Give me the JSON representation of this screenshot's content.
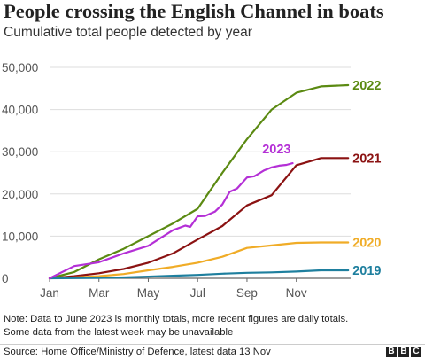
{
  "title": "People crossing the English Channel in boats",
  "subtitle": "Cumulative total people detected by year",
  "note_line1": "Note: Data to June 2023 is monthly totals, more recent figures are daily totals.",
  "note_line2": "Some data from the latest week may be unavailable",
  "source": "Source: Home Office/Ministry of Defence, latest data 13 Nov",
  "logo_letters": [
    "B",
    "B",
    "C"
  ],
  "chart_data": {
    "type": "line",
    "title": "People crossing the English Channel in boats",
    "subtitle": "Cumulative total people detected by year",
    "x_ticks": [
      "Jan",
      "Mar",
      "May",
      "Jul",
      "Sep",
      "Nov"
    ],
    "x_tick_months": [
      1,
      3,
      5,
      7,
      9,
      11
    ],
    "y_ticks": [
      "0",
      "10,000",
      "20,000",
      "30,000",
      "40,000",
      "50,000"
    ],
    "y_tick_values": [
      0,
      10000,
      20000,
      30000,
      40000,
      50000
    ],
    "xlim": [
      1,
      13.2
    ],
    "ylim": [
      0,
      50000
    ],
    "grid": true,
    "legend": "labels at line ends",
    "series": [
      {
        "name": "2022",
        "color": "#5b8a12",
        "x": [
          1,
          2,
          3,
          4,
          5,
          6,
          7,
          8,
          9,
          10,
          11,
          12,
          13.1
        ],
        "y": [
          0,
          1500,
          4500,
          7000,
          10000,
          13000,
          16500,
          25000,
          33000,
          40000,
          44000,
          45500,
          45800
        ]
      },
      {
        "name": "2021",
        "color": "#8b1212",
        "x": [
          1,
          2,
          3,
          4,
          5,
          6,
          7,
          8,
          9,
          10,
          11,
          12,
          13.1
        ],
        "y": [
          0,
          500,
          1200,
          2200,
          3700,
          5900,
          9200,
          12400,
          17300,
          19700,
          26800,
          28500,
          28500
        ]
      },
      {
        "name": "2020",
        "color": "#f0ac27",
        "x": [
          1,
          2,
          3,
          4,
          5,
          6,
          7,
          8,
          9,
          10,
          11,
          12,
          13.1
        ],
        "y": [
          0,
          200,
          500,
          1000,
          1900,
          2700,
          3700,
          5100,
          7200,
          7800,
          8400,
          8500,
          8500
        ]
      },
      {
        "name": "2019",
        "color": "#1e7f9e",
        "x": [
          1,
          2,
          3,
          4,
          5,
          6,
          7,
          8,
          9,
          10,
          11,
          12,
          13.1
        ],
        "y": [
          0,
          50,
          100,
          200,
          400,
          600,
          800,
          1100,
          1300,
          1400,
          1600,
          1900,
          1900
        ]
      },
      {
        "name": "2023",
        "color": "#b42fd6",
        "x": [
          1,
          2,
          3,
          4,
          5,
          6,
          6.5,
          6.7,
          7,
          7.3,
          7.7,
          8,
          8.3,
          8.6,
          9,
          9.3,
          9.7,
          10,
          10.3,
          10.6,
          10.85
        ],
        "y": [
          0,
          2900,
          3800,
          5900,
          7700,
          11400,
          12500,
          12200,
          14700,
          14800,
          15800,
          17500,
          20500,
          21300,
          23900,
          24200,
          25600,
          26300,
          26700,
          26900,
          27300
        ]
      }
    ]
  }
}
